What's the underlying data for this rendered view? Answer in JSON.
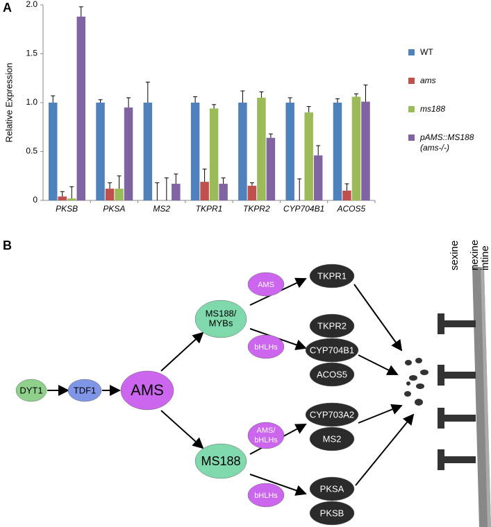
{
  "panel_labels": [
    "A",
    "B"
  ],
  "chart_data": {
    "type": "bar",
    "y_label": "Relative Expression",
    "categories": [
      "PKSB",
      "PKSA",
      "MS2",
      "TKPR1",
      "TKPR2",
      "CYP704B1",
      "ACOS5"
    ],
    "series": [
      {
        "name": "WT",
        "color": "#4f81bd",
        "values": [
          1.0,
          1.0,
          1.0,
          1.0,
          1.0,
          1.0,
          1.0
        ],
        "errors": [
          0.07,
          0.03,
          0.21,
          0.06,
          0.12,
          0.05,
          0.04
        ]
      },
      {
        "name": "ams",
        "color": "#c0504d",
        "values": [
          0.04,
          0.12,
          0,
          0.19,
          0.15,
          0,
          0.1
        ],
        "errors": [
          0.05,
          0.06,
          0.18,
          0.13,
          0.03,
          0.22,
          0.07
        ]
      },
      {
        "name": "ms188",
        "color": "#9bbb59",
        "values": [
          0.02,
          0.12,
          0,
          0.94,
          1.05,
          0.9,
          1.06
        ],
        "errors": [
          0.12,
          0.13,
          0.23,
          0.04,
          0.06,
          0.06,
          0.03
        ]
      },
      {
        "name": "pAMS::MS188 (ams-/-)",
        "color": "#8064a2",
        "values": [
          1.88,
          0.95,
          0.17,
          0.17,
          0.64,
          0.46,
          1.01
        ],
        "errors": [
          0.1,
          0.1,
          0.1,
          0.06,
          0.04,
          0.1,
          0.17
        ]
      }
    ],
    "ylim": [
      0,
      2
    ],
    "yticks": [
      0,
      0.5,
      {
        "value": 1,
        "label": "1.0"
      },
      1.5,
      {
        "value": 2,
        "label": "2.0"
      }
    ]
  },
  "diagram": {
    "nodes": {
      "dyt1": "DYT1",
      "tdf1": "TDF1",
      "ams": "AMS",
      "ms188_mybs": [
        "MS188/",
        "MYBs"
      ],
      "ms188": "MS188",
      "tf_ams": "AMS",
      "tf_bhlhs_1": "bHLHs",
      "tf_ams_bhlhs": [
        "AMS/",
        "bHLHs"
      ],
      "tf_bhlhs_2": "bHLHs",
      "tkpr1": "TKPR1",
      "tkpr2": "TKPR2",
      "cyp704b1": "CYP704B1",
      "acos5": "ACOS5",
      "cyp703a2": "CYP703A2",
      "ms2": "MS2",
      "pksa": "PKSA",
      "pksb": "PKSB"
    },
    "wall_labels": [
      "sexine",
      "nexine",
      "intine"
    ]
  }
}
